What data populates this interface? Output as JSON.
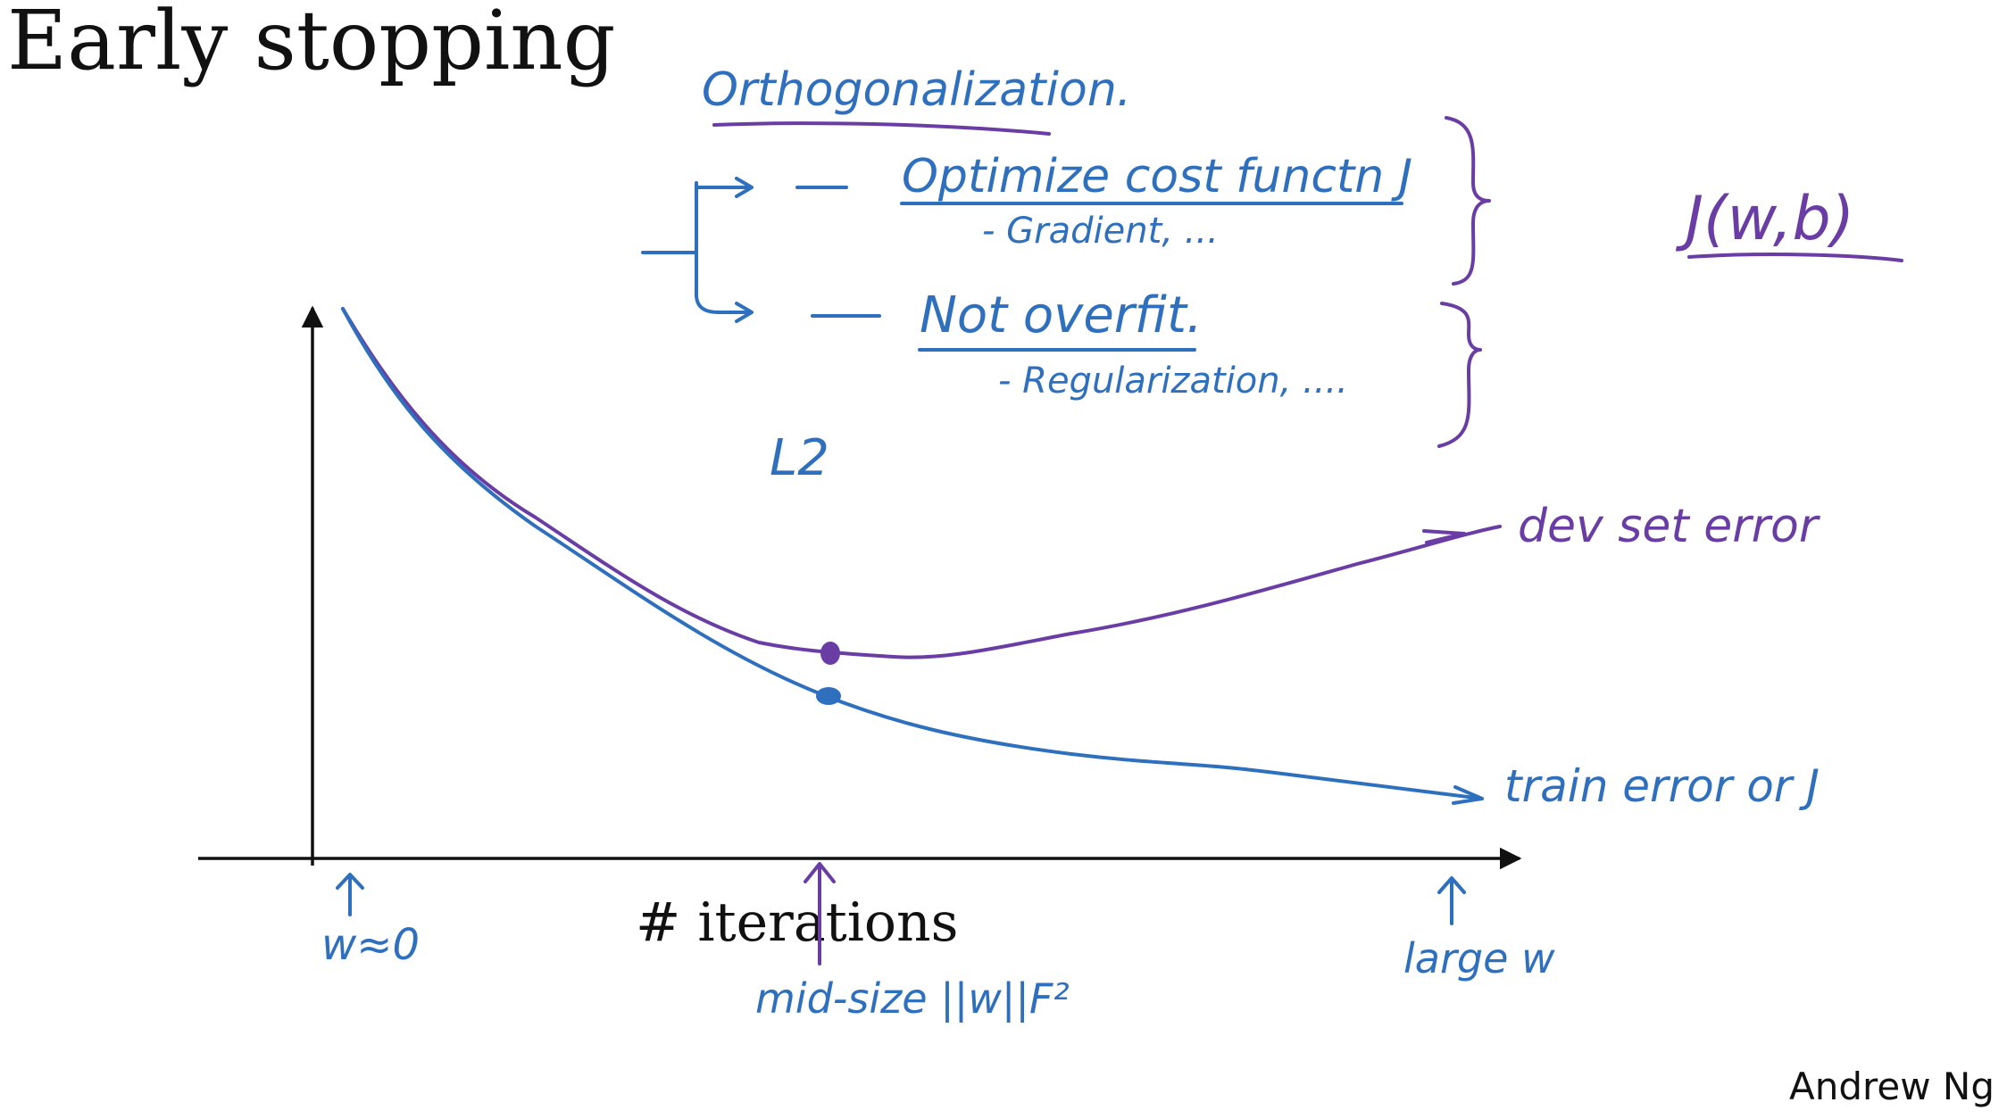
{
  "title": "Early stopping",
  "author": "Andrew Ng",
  "notes": {
    "orthogonalization": "Orthogonalization.",
    "optimize": "Optimize cost functn J",
    "gradient": "- Gradient, ...",
    "not_overfit": "Not overfit.",
    "regularization": "- Regularization, ....",
    "cost_fn": "J(w,b)",
    "l2": "L2"
  },
  "chart_data": {
    "type": "line",
    "xlabel": "# iterations",
    "ylabel": "",
    "series": [
      {
        "name": "dev set error",
        "color": "#6a3da5",
        "trend": "decreases then increases"
      },
      {
        "name": "train error or J",
        "color": "#2e6fbe",
        "trend": "monotonically decreasing"
      }
    ],
    "annotations": [
      "w≈0",
      "mid-size ||w||F²",
      "large w"
    ]
  }
}
